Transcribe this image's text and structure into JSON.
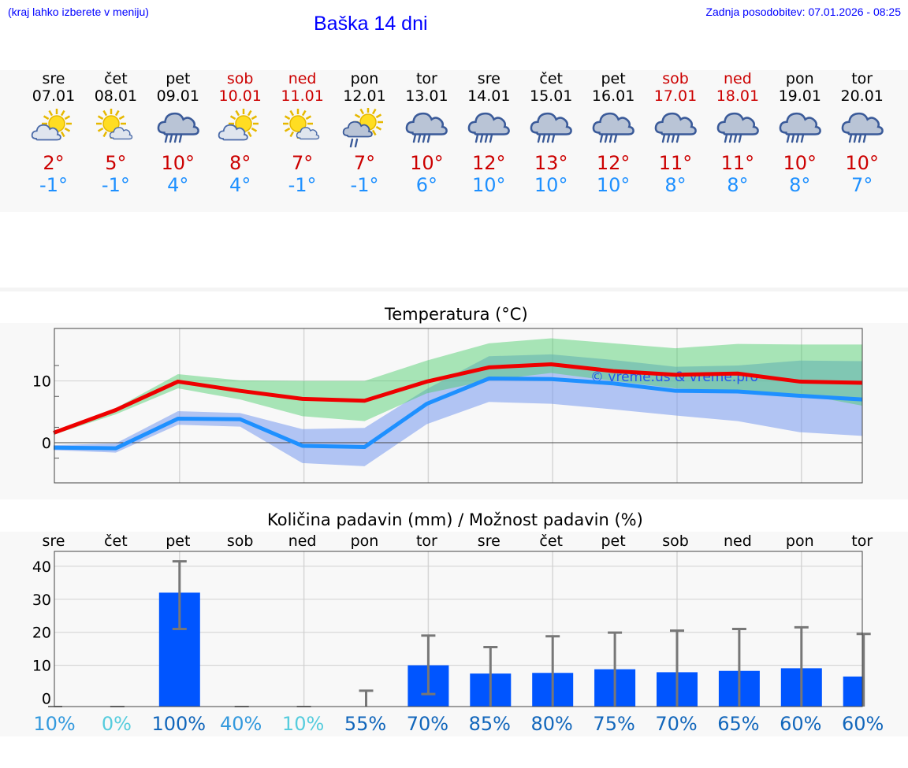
{
  "header": {
    "region_note": "(kraj lahko izberete v meniju)",
    "title": "Baška 14 dni",
    "updated": "Zadnja posodobitev: 07.01.2026 - 08:25"
  },
  "colors": {
    "title_blue": "#0000ff",
    "weekend_red": "#cc0000",
    "max_red": "#ee0000",
    "min_blue": "#1e90ff",
    "bar_blue": "#0055ff"
  },
  "days": [
    {
      "name": "sre",
      "date": "07.01",
      "weekend": false,
      "icon": "sun-cloud-icon",
      "max": "2°",
      "min": "-1°"
    },
    {
      "name": "čet",
      "date": "08.01",
      "weekend": false,
      "icon": "sun-small-cloud-icon",
      "max": "5°",
      "min": "-1°"
    },
    {
      "name": "pet",
      "date": "09.01",
      "weekend": false,
      "icon": "rain-cloud-icon",
      "max": "10°",
      "min": "4°"
    },
    {
      "name": "sob",
      "date": "10.01",
      "weekend": true,
      "icon": "sun-cloud-icon",
      "max": "8°",
      "min": "4°"
    },
    {
      "name": "ned",
      "date": "11.01",
      "weekend": true,
      "icon": "sun-small-cloud-icon",
      "max": "7°",
      "min": "-1°"
    },
    {
      "name": "pon",
      "date": "12.01",
      "weekend": false,
      "icon": "sun-rain-icon",
      "max": "7°",
      "min": "-1°"
    },
    {
      "name": "tor",
      "date": "13.01",
      "weekend": false,
      "icon": "rain-cloud-icon",
      "max": "10°",
      "min": "6°"
    },
    {
      "name": "sre",
      "date": "14.01",
      "weekend": false,
      "icon": "rain-cloud-icon",
      "max": "12°",
      "min": "10°"
    },
    {
      "name": "čet",
      "date": "15.01",
      "weekend": false,
      "icon": "rain-cloud-icon",
      "max": "13°",
      "min": "10°"
    },
    {
      "name": "pet",
      "date": "16.01",
      "weekend": false,
      "icon": "rain-cloud-icon",
      "max": "12°",
      "min": "10°"
    },
    {
      "name": "sob",
      "date": "17.01",
      "weekend": true,
      "icon": "rain-cloud-icon",
      "max": "11°",
      "min": "8°"
    },
    {
      "name": "ned",
      "date": "18.01",
      "weekend": true,
      "icon": "rain-cloud-icon",
      "max": "11°",
      "min": "8°"
    },
    {
      "name": "pon",
      "date": "19.01",
      "weekend": false,
      "icon": "rain-cloud-icon",
      "max": "10°",
      "min": "8°"
    },
    {
      "name": "tor",
      "date": "20.01",
      "weekend": false,
      "icon": "rain-cloud-icon",
      "max": "10°",
      "min": "7°"
    }
  ],
  "chart_data": [
    {
      "type": "line",
      "title": "Temperatura (°C)",
      "xlabel": "",
      "ylabel": "°C",
      "ylim": [
        -6.5,
        18.5
      ],
      "yticks": [
        0,
        10
      ],
      "watermark": "© vreme.us & vreme.pro",
      "x": [
        0,
        1,
        2,
        3,
        4,
        5,
        6,
        7,
        8,
        9,
        10,
        11,
        12,
        13
      ],
      "series": [
        {
          "name": "max",
          "values": [
            1.6,
            5.3,
            9.9,
            8.4,
            7.1,
            6.8,
            9.9,
            12.2,
            12.7,
            11.6,
            11.0,
            11.2,
            9.9,
            9.7
          ]
        },
        {
          "name": "min",
          "values": [
            -0.8,
            -0.9,
            3.9,
            3.8,
            -0.5,
            -0.7,
            6.3,
            10.4,
            10.3,
            9.6,
            8.4,
            8.3,
            7.6,
            7.0
          ]
        }
      ],
      "bands": [
        {
          "name": "max-range",
          "low": [
            1.3,
            4.6,
            8.8,
            7.0,
            4.3,
            3.5,
            8.0,
            10.1,
            11.3,
            10.0,
            8.8,
            8.3,
            7.9,
            6.0
          ],
          "high": [
            1.8,
            5.6,
            11.1,
            10.1,
            10.0,
            10.0,
            13.3,
            16.1,
            16.9,
            16.1,
            15.3,
            16.0,
            15.9,
            15.9
          ]
        },
        {
          "name": "min-range",
          "low": [
            -1.2,
            -1.6,
            2.9,
            2.6,
            -3.3,
            -3.8,
            3.0,
            6.6,
            6.3,
            5.4,
            4.4,
            3.5,
            1.7,
            1.1
          ],
          "high": [
            -0.4,
            -0.1,
            5.1,
            4.8,
            2.2,
            2.4,
            8.7,
            14.0,
            14.3,
            13.4,
            12.3,
            12.5,
            13.3,
            13.2
          ]
        }
      ]
    },
    {
      "type": "bar",
      "title": "Količina padavin (mm) / Možnost padavin (%)",
      "xlabel": "",
      "ylabel": "mm",
      "ylim": [
        -2.5,
        44.5
      ],
      "yticks": [
        0,
        10,
        20,
        30,
        40
      ],
      "categories": [
        "sre",
        "čet",
        "pet",
        "sob",
        "ned",
        "pon",
        "tor",
        "sre",
        "čet",
        "pet",
        "sob",
        "ned",
        "pon",
        "tor"
      ],
      "values": [
        0,
        0,
        32,
        0,
        0,
        0,
        10,
        7.5,
        7.7,
        8.8,
        7.9,
        8.3,
        9.1,
        6.6
      ],
      "error_low": [
        0,
        0,
        21,
        0,
        0,
        0,
        1.3,
        0,
        0,
        0,
        0,
        0,
        0,
        0
      ],
      "error_high": [
        0,
        0,
        41.5,
        0,
        0,
        2.3,
        19,
        15.5,
        18.8,
        19.9,
        20.5,
        21,
        21.5,
        19.5
      ],
      "probability": [
        "10%",
        "0%",
        "100%",
        "40%",
        "10%",
        "55%",
        "70%",
        "85%",
        "80%",
        "75%",
        "70%",
        "65%",
        "60%",
        "60%"
      ],
      "probability_colors": [
        "#3399dd",
        "#55ccdd",
        "#1166bb",
        "#3399dd",
        "#55ccdd",
        "#1166bb",
        "#1166bb",
        "#1166bb",
        "#1166bb",
        "#1166bb",
        "#1166bb",
        "#1166bb",
        "#1166bb",
        "#1166bb"
      ]
    }
  ]
}
